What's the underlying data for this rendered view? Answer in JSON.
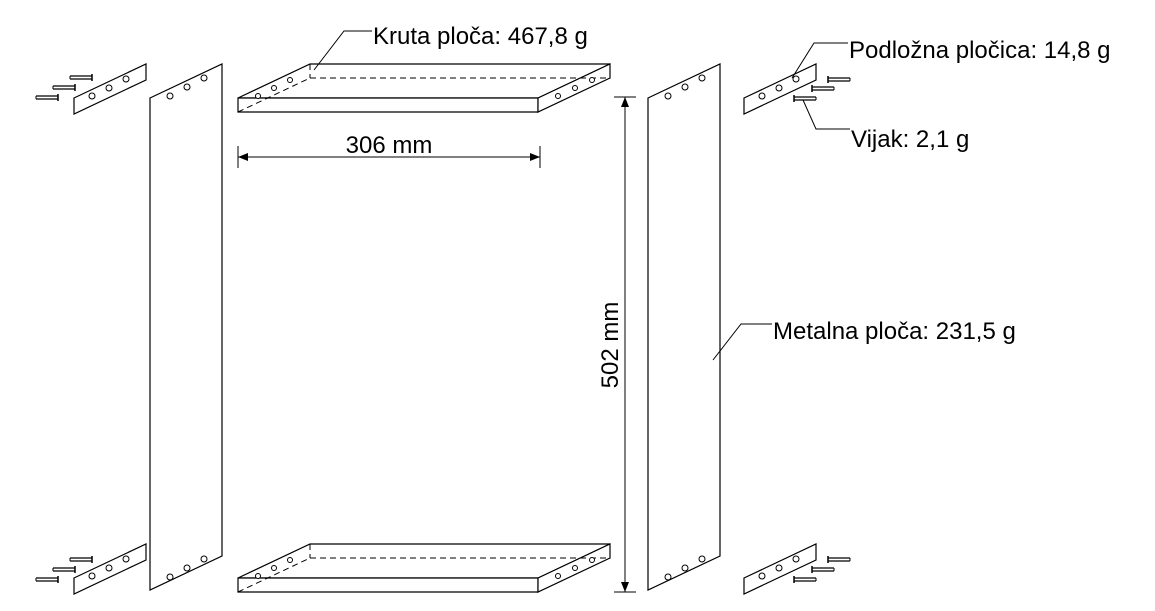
{
  "labels": {
    "rigid_plate": "Kruta ploča: 467,8 g",
    "washer_plate": "Podložna pločica: 14,8 g",
    "screw": "Vijak: 2,1 g",
    "metal_plate": "Metalna ploča: 231,5 g"
  },
  "dimensions": {
    "width": "306 mm",
    "height": "502 mm"
  }
}
